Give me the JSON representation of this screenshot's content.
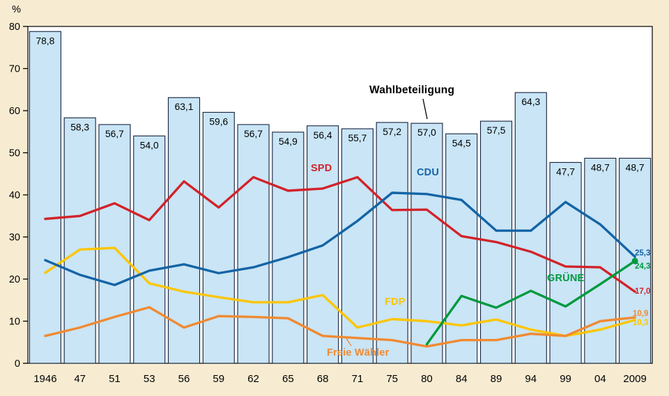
{
  "percent_symbol": "%",
  "colors": {
    "background": "#f7ecd2",
    "plot_bg": "#ffffff",
    "plot_border": "#000000",
    "bar_fill": "#c9e5f6",
    "bar_border": "#14213d",
    "spd": "#d2232a",
    "cdu": "#1464a5",
    "fdp": "#fdc500",
    "gruene": "#00993f",
    "freie_waehler": "#f08a32",
    "text": "#000000"
  },
  "chart_data": {
    "type": "bar+line combo",
    "categories": [
      "1946",
      "47",
      "51",
      "53",
      "56",
      "59",
      "62",
      "65",
      "68",
      "71",
      "75",
      "80",
      "84",
      "89",
      "94",
      "99",
      "04",
      "2009"
    ],
    "ylabel": "%",
    "ylim": [
      0,
      80
    ],
    "yticks": [
      0,
      10,
      20,
      30,
      40,
      50,
      60,
      70,
      80
    ],
    "grid": "off",
    "bars": {
      "name": "Wahlbeteiligung",
      "values": [
        78.8,
        58.3,
        56.7,
        54.0,
        63.1,
        59.6,
        56.7,
        54.9,
        56.4,
        55.7,
        57.2,
        57.0,
        54.5,
        57.5,
        64.3,
        47.7,
        48.7,
        48.7
      ],
      "labels": [
        "78,8",
        "58,3",
        "56,7",
        "54,0",
        "63,1",
        "59,6",
        "56,7",
        "54,9",
        "56,4",
        "55,7",
        "57,2",
        "57,0",
        "54,5",
        "57,5",
        "64,3",
        "47,7",
        "48,7",
        "48,7"
      ]
    },
    "series": [
      {
        "name": "FDP",
        "color_key": "fdp",
        "values": [
          21.5,
          27.0,
          27.4,
          19.0,
          17.0,
          15.7,
          14.5,
          14.5,
          16.2,
          8.5,
          10.5,
          10.0,
          9.0,
          10.4,
          8.0,
          6.5,
          8.0,
          10.3
        ],
        "end_label": "10,3",
        "end_dot": false
      },
      {
        "name": "Freie Wähler",
        "color_key": "freie_waehler",
        "values": [
          6.5,
          8.5,
          11.0,
          13.3,
          8.5,
          11.2,
          11.0,
          10.7,
          6.5,
          6.0,
          5.5,
          4.0,
          5.5,
          5.5,
          7.0,
          6.5,
          10.0,
          10.9
        ],
        "end_label": "10,9",
        "end_dot": false
      },
      {
        "name": "SPD",
        "color_key": "spd",
        "values": [
          34.3,
          35.0,
          38.0,
          34.0,
          43.2,
          37.0,
          44.2,
          41.0,
          41.5,
          44.2,
          36.4,
          36.5,
          30.2,
          28.8,
          26.5,
          23.0,
          22.8,
          17.0
        ],
        "end_label": "17,0",
        "end_dot": false
      },
      {
        "name": "CDU",
        "color_key": "cdu",
        "values": [
          24.5,
          21.0,
          18.6,
          22.0,
          23.5,
          21.4,
          22.8,
          25.2,
          28.0,
          33.8,
          40.5,
          40.2,
          38.8,
          31.5,
          31.5,
          38.3,
          33.0,
          25.3
        ],
        "end_label": "25,3",
        "end_dot": false
      },
      {
        "name": "GRÜNE",
        "color_key": "gruene",
        "values": [
          null,
          null,
          null,
          null,
          null,
          null,
          null,
          null,
          null,
          null,
          null,
          4.5,
          16.0,
          13.2,
          17.2,
          13.5,
          18.8,
          24.3
        ],
        "end_label": "24,3",
        "end_dot": true
      }
    ]
  },
  "annotations": {
    "wahlbeteiligung": "Wahlbeteiligung",
    "spd": "SPD",
    "cdu": "CDU",
    "fdp": "FDP",
    "gruene": "GRÜNE",
    "freie_waehler": "Freie Wähler"
  },
  "end_labels": {
    "cdu": "25,3",
    "gruene": "24,3",
    "spd": "17,0",
    "freie_waehler": "10,9",
    "fdp": "10,3"
  }
}
